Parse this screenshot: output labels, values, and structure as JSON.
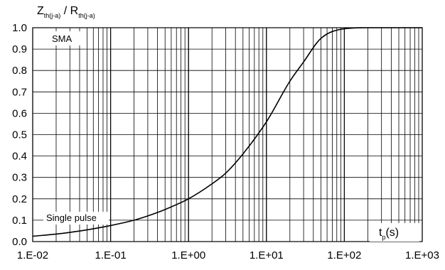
{
  "chart_data": {
    "type": "line",
    "title": "",
    "ylabel": {
      "base1": "Z",
      "sub1": "th(j-a)",
      "sep": " / ",
      "base2": "R",
      "sub2": "th(j-a)"
    },
    "xlabel": {
      "base1": "t",
      "sub1": "p",
      "rest": "(s)"
    },
    "x_scale": "log",
    "xlim": [
      0.01,
      1000
    ],
    "ylim": [
      0.0,
      1.0
    ],
    "grid": true,
    "x_tick_labels": [
      "1.E-02",
      "1.E-01",
      "1.E+00",
      "1.E+01",
      "1.E+02",
      "1.E+03"
    ],
    "y_tick_labels": [
      "0.0",
      "0.1",
      "0.2",
      "0.3",
      "0.4",
      "0.5",
      "0.6",
      "0.7",
      "0.8",
      "0.9",
      "1.0"
    ],
    "annotations": {
      "package": "SMA",
      "mode": "Single pulse"
    },
    "series": [
      {
        "x": [
          0.01,
          0.02,
          0.03,
          0.05,
          0.1,
          0.2,
          0.3,
          0.5,
          1,
          2,
          3,
          5,
          10,
          20,
          30,
          50,
          100,
          200,
          500,
          1000
        ],
        "y": [
          0.025,
          0.035,
          0.043,
          0.055,
          0.075,
          0.1,
          0.12,
          0.15,
          0.2,
          0.27,
          0.32,
          0.41,
          0.56,
          0.75,
          0.84,
          0.95,
          0.995,
          1.0,
          1.0,
          1.0
        ]
      }
    ],
    "colors": {
      "line": "#000000",
      "grid": "#000000",
      "background": "#ffffff"
    }
  }
}
